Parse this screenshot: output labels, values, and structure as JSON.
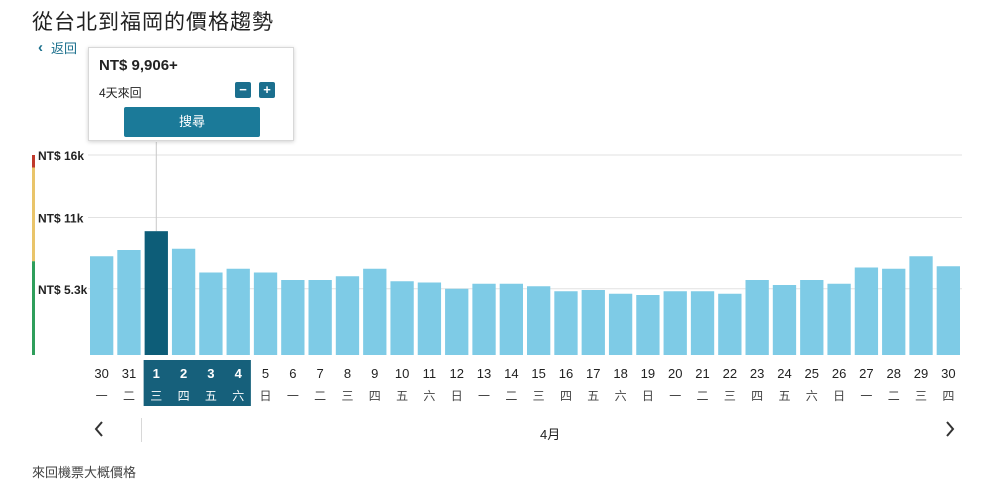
{
  "page": {
    "title": "從台北到福岡的價格趨勢",
    "back_label": "返回",
    "month_label": "4月",
    "footnote": "來回機票大概價格"
  },
  "popup": {
    "price": "NT$ 9,906+",
    "duration": "4天來回",
    "minus_label": "−",
    "plus_label": "+",
    "search_label": "搜尋"
  },
  "icons": {
    "back": "chevron-left-icon",
    "prev": "chevron-left-icon",
    "next": "chevron-right-icon"
  },
  "colors": {
    "bar": "#7ecbe6",
    "bar_selected": "#0d5d78",
    "date_selected_bg": "#16607b",
    "band_high": "#c0392b",
    "band_mid": "#e9c46a",
    "band_low": "#2e9e5b"
  },
  "chart_data": {
    "type": "bar",
    "y_tick_labels": [
      "NT$ 16k",
      "NT$ 11k",
      "NT$ 5.3k"
    ],
    "y_tick_values": [
      16000,
      11000,
      5300
    ],
    "ylim": [
      0,
      16000
    ],
    "grid": true,
    "categories": [
      "30",
      "31",
      "1",
      "2",
      "3",
      "4",
      "5",
      "6",
      "7",
      "8",
      "9",
      "10",
      "11",
      "12",
      "13",
      "14",
      "15",
      "16",
      "17",
      "18",
      "19",
      "20",
      "21",
      "22",
      "23",
      "24",
      "25",
      "26",
      "27",
      "28",
      "29",
      "30"
    ],
    "weekdays": [
      "一",
      "二",
      "三",
      "四",
      "五",
      "六",
      "日",
      "一",
      "二",
      "三",
      "四",
      "五",
      "六",
      "日",
      "一",
      "二",
      "三",
      "四",
      "五",
      "六",
      "日",
      "一",
      "二",
      "三",
      "四",
      "五",
      "六",
      "日",
      "一",
      "二",
      "三",
      "四"
    ],
    "values": [
      7900,
      8400,
      9906,
      8500,
      6600,
      6900,
      6600,
      6000,
      6000,
      6300,
      6900,
      5900,
      5800,
      5300,
      5700,
      5700,
      5500,
      5100,
      5200,
      4900,
      4800,
      5100,
      5100,
      4900,
      6000,
      5600,
      6000,
      5700,
      7000,
      6900,
      7900,
      7100
    ],
    "selected_index": 2,
    "selected_range": [
      2,
      5
    ]
  }
}
